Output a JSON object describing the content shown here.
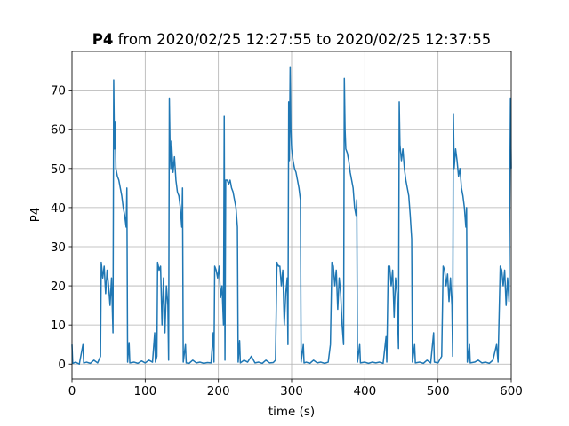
{
  "chart_data": {
    "type": "line",
    "title": [
      "P4",
      "from 2020/02/25 12:27:55 to 2020/02/25 12:37:55"
    ],
    "x_label": "time (s)",
    "y_label": "P4",
    "color": "#1f77b4",
    "grid": true,
    "xlim": [
      0,
      600
    ],
    "xticks": [
      0,
      100,
      200,
      300,
      400,
      500,
      600
    ],
    "ylim": [
      -3.8,
      79.9
    ],
    "yticks": [
      0,
      10,
      20,
      30,
      40,
      50,
      60,
      70
    ],
    "x": [
      0,
      1,
      5,
      10,
      15,
      16,
      20,
      25,
      30,
      35,
      39,
      40,
      42,
      44,
      46,
      48,
      50,
      52,
      54,
      56,
      57,
      58,
      59,
      60,
      62,
      64,
      66,
      68,
      70,
      72,
      74,
      75,
      76,
      78,
      79,
      85,
      90,
      95,
      100,
      105,
      110,
      113,
      114,
      116,
      117,
      119,
      121,
      123,
      125,
      127,
      129,
      131,
      132,
      133,
      134,
      135,
      136,
      138,
      140,
      142,
      144,
      146,
      148,
      150,
      151,
      152,
      155,
      156,
      160,
      165,
      170,
      175,
      180,
      185,
      190,
      193,
      194,
      195,
      197,
      199,
      201,
      203,
      205,
      207,
      208,
      209,
      210,
      212,
      214,
      216,
      218,
      220,
      222,
      224,
      226,
      227,
      229,
      230,
      235,
      240,
      245,
      250,
      255,
      260,
      265,
      270,
      275,
      278,
      280,
      282,
      284,
      286,
      288,
      290,
      292,
      294,
      295,
      296,
      297,
      298,
      299,
      300,
      302,
      304,
      306,
      308,
      310,
      312,
      313,
      316,
      317,
      320,
      325,
      330,
      335,
      340,
      345,
      350,
      353,
      355,
      357,
      359,
      361,
      363,
      365,
      367,
      369,
      371,
      372,
      373,
      374,
      376,
      378,
      380,
      382,
      384,
      386,
      388,
      389,
      390,
      393,
      394,
      400,
      405,
      410,
      415,
      420,
      425,
      429,
      430,
      432,
      434,
      436,
      438,
      440,
      442,
      444,
      446,
      447,
      448,
      450,
      452,
      454,
      456,
      458,
      460,
      462,
      464,
      465,
      468,
      469,
      475,
      480,
      485,
      490,
      494,
      495,
      500,
      505,
      507,
      509,
      511,
      513,
      515,
      517,
      519,
      520,
      521,
      522,
      524,
      526,
      528,
      530,
      532,
      534,
      536,
      538,
      539,
      540,
      543,
      544,
      550,
      555,
      560,
      565,
      570,
      575,
      580,
      582,
      585,
      587,
      589,
      591,
      593,
      595,
      597,
      599,
      600
    ],
    "values": [
      5,
      0.2,
      0.5,
      0,
      5,
      0.3,
      0.5,
      0.2,
      1,
      0.3,
      2,
      26,
      22,
      25,
      18,
      24,
      20,
      15,
      22,
      8,
      72.6,
      55,
      62,
      50,
      48,
      47,
      45,
      43,
      40,
      38,
      35,
      45,
      0.5,
      5.5,
      0.3,
      0.5,
      0.2,
      0.8,
      0.3,
      1,
      0.5,
      8,
      0.5,
      2,
      26,
      24,
      25,
      10,
      22,
      8,
      20,
      15,
      1,
      68,
      55,
      50,
      57,
      49,
      53,
      47,
      44,
      43,
      40,
      35,
      45,
      0.5,
      5,
      0.3,
      0.2,
      1,
      0.3,
      0.5,
      0.2,
      0.4,
      0.3,
      8,
      0.5,
      25,
      24,
      22,
      25,
      17,
      20,
      10,
      63.3,
      1,
      47,
      47,
      46,
      47,
      45,
      44,
      42,
      40,
      35,
      0.5,
      6,
      0.3,
      1,
      0.5,
      2,
      0.3,
      0.5,
      0.2,
      1,
      0.3,
      0.4,
      1,
      26,
      25,
      25,
      20,
      24,
      10,
      18,
      22,
      5,
      67,
      52,
      76,
      60,
      55,
      52,
      50,
      49,
      47,
      45,
      42,
      0.5,
      5,
      0.3,
      0.5,
      0.2,
      1,
      0.3,
      0.5,
      0.2,
      0.5,
      5,
      26,
      25,
      20,
      24,
      14,
      22,
      18,
      10,
      5,
      73,
      60,
      55,
      54,
      52,
      49,
      47,
      45,
      40,
      38,
      42,
      0.5,
      5,
      0.3,
      0.5,
      0.2,
      0.5,
      0.3,
      0.5,
      0.2,
      7,
      0.5,
      25,
      25,
      20,
      24,
      12,
      22,
      18,
      4,
      67,
      56,
      52,
      55,
      50,
      47,
      45,
      43,
      38,
      32,
      0.5,
      5,
      0.3,
      0.5,
      0.2,
      1,
      0.3,
      8,
      0.5,
      0.3,
      2,
      25,
      24,
      20,
      23,
      16,
      22,
      15,
      2,
      64,
      50,
      55,
      52,
      48,
      50,
      45,
      43,
      40,
      35,
      40,
      0.5,
      5,
      0.3,
      0.5,
      1,
      0.3,
      0.5,
      0.2,
      1,
      5,
      0.5,
      25,
      24,
      20,
      24,
      15,
      22,
      16,
      68,
      50
    ]
  }
}
